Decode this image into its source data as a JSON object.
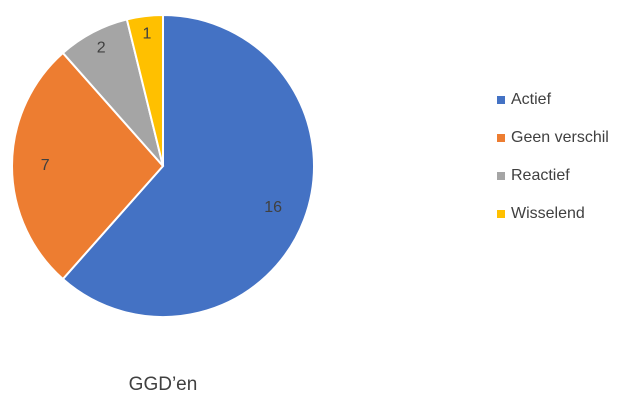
{
  "chart_data": {
    "type": "pie",
    "title": "GGD’en",
    "categories": [
      "Actief",
      "Geen verschil",
      "Reactief",
      "Wisselend"
    ],
    "values": [
      16,
      7,
      2,
      1
    ],
    "colors": [
      "#4472c4",
      "#ed7d31",
      "#a5a5a5",
      "#ffc000"
    ]
  }
}
